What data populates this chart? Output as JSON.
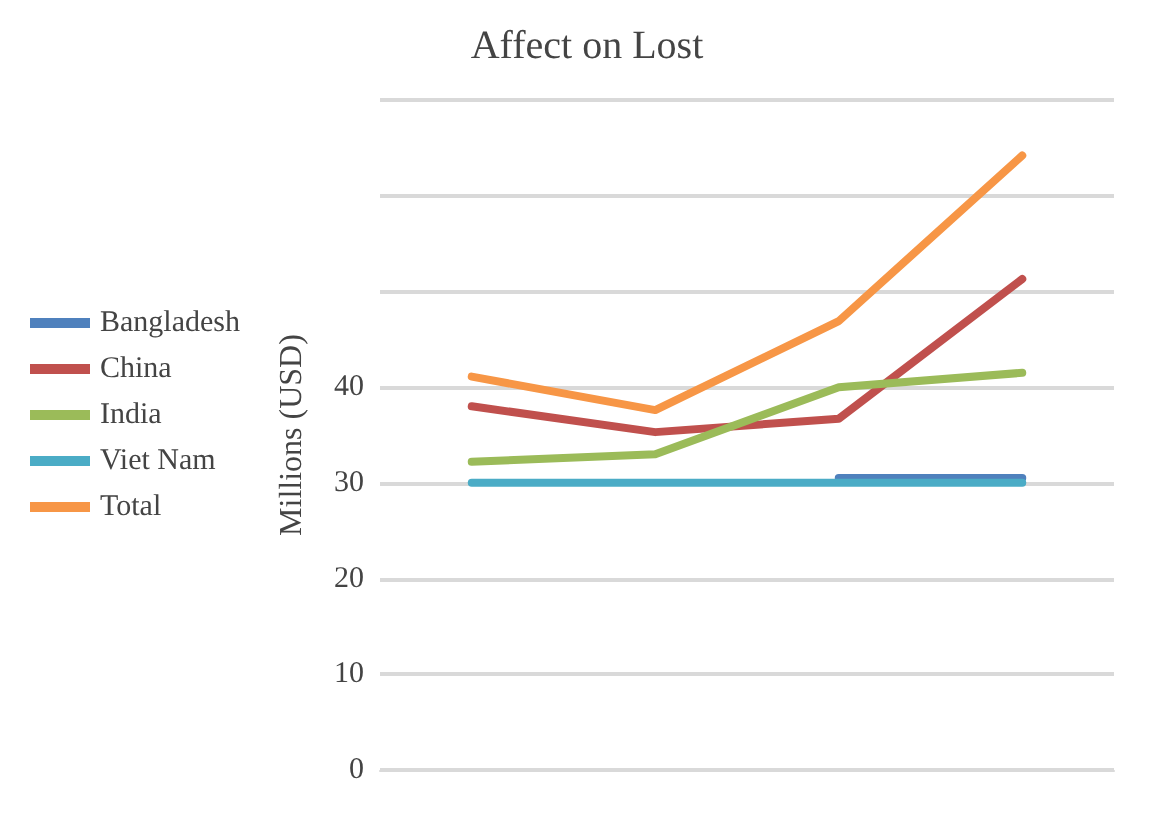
{
  "chart_data": {
    "type": "line",
    "title": "Affect on Lost",
    "ylabel": "Millions (USD)",
    "categories": [
      null,
      null,
      null,
      null
    ],
    "series": [
      {
        "name": "Bangladesh",
        "color": "#4f81bd",
        "values": [
          null,
          null,
          30.5,
          30.5
        ]
      },
      {
        "name": "China",
        "color": "#c0504d",
        "values": [
          38,
          35.3,
          36.7,
          51.3
        ]
      },
      {
        "name": "India",
        "color": "#9bbb59",
        "values": [
          32.2,
          33,
          40,
          41.5
        ]
      },
      {
        "name": "Viet Nam",
        "color": "#4bacc6",
        "values": [
          30,
          30,
          30,
          30
        ]
      },
      {
        "name": "Total",
        "color": "#f79646",
        "values": [
          41.1,
          37.6,
          46.9,
          64.2
        ]
      }
    ],
    "ylim": [
      0,
      70
    ],
    "yticks": [
      0,
      10,
      20,
      30,
      40,
      {
        "value": 50,
        "label": null
      },
      {
        "value": 60,
        "label": null
      },
      {
        "value": 70,
        "label": null
      }
    ],
    "grid": "y",
    "legend": "left",
    "marker": "none",
    "line_style": "solid"
  }
}
